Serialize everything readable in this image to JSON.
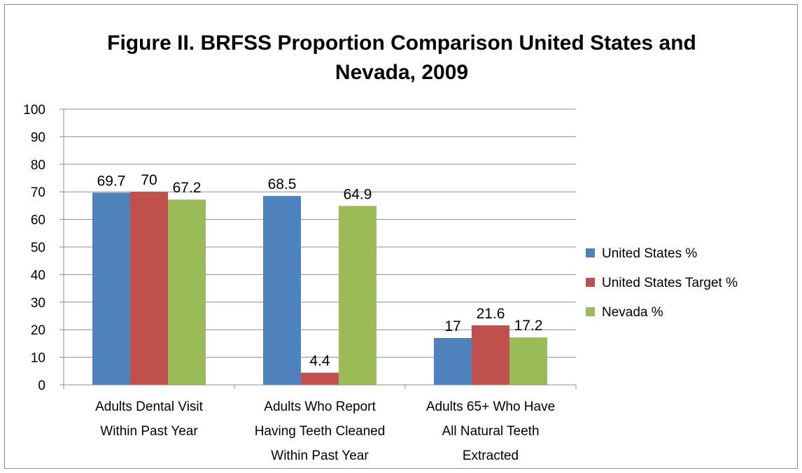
{
  "chart_data": {
    "type": "bar",
    "title_lines": [
      "Figure II. BRFSS Proportion Comparison United States and",
      "Nevada, 2009"
    ],
    "categories": [
      [
        "Adults Dental Visit",
        "Within Past Year"
      ],
      [
        "Adults Who Report",
        "Having Teeth Cleaned",
        "Within Past Year"
      ],
      [
        "Adults 65+ Who Have",
        "All Natural Teeth",
        "Extracted"
      ]
    ],
    "series": [
      {
        "name": "United States %",
        "color": "#4F81BD",
        "values": [
          69.7,
          68.5,
          17
        ]
      },
      {
        "name": "United States Target %",
        "color": "#C0504D",
        "values": [
          70,
          4.4,
          21.6
        ]
      },
      {
        "name": "Nevada %",
        "color": "#9BBB59",
        "values": [
          67.2,
          64.9,
          17.2
        ]
      }
    ],
    "ylim": [
      0,
      100
    ],
    "yticks": [
      0,
      10,
      20,
      30,
      40,
      50,
      60,
      70,
      80,
      90,
      100
    ],
    "grid": true,
    "legend": "right",
    "data_labels": true
  }
}
